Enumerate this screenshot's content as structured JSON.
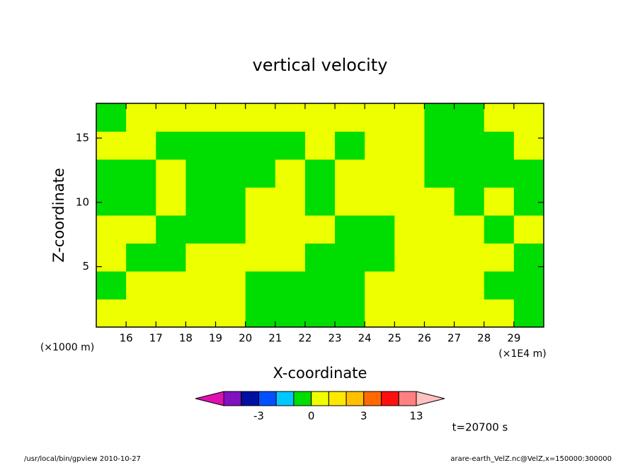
{
  "chart_data": {
    "type": "contour",
    "title": "vertical velocity",
    "xlabel": "X-coordinate",
    "ylabel": "Z-coordinate",
    "xunit": "(×1E4 m)",
    "yunit": "(×1000 m)",
    "xlim": [
      15,
      30
    ],
    "xticks": [
      16,
      17,
      18,
      19,
      20,
      21,
      22,
      23,
      24,
      25,
      26,
      27,
      28,
      29
    ],
    "ylim": [
      0.3,
      17.7
    ],
    "yticks": [
      5,
      10,
      15
    ],
    "x": [
      15.5,
      16.5,
      17.5,
      18.5,
      19.5,
      20.5,
      21.5,
      22.5,
      23.5,
      24.5,
      25.5,
      26.5,
      27.5,
      28.5,
      29.5
    ],
    "y": [
      1.39,
      3.56,
      5.74,
      7.91,
      10.09,
      12.26,
      14.44,
      16.61
    ],
    "z": [
      [
        0.5,
        0.5,
        0.5,
        0.5,
        0.5,
        -0.5,
        -0.5,
        -0.5,
        -0.5,
        0.5,
        0.5,
        0.5,
        0.5,
        0.5,
        -0.5
      ],
      [
        -0.5,
        0.5,
        0.5,
        0.5,
        0.5,
        -0.5,
        -0.5,
        -0.5,
        -0.5,
        0.5,
        0.5,
        0.5,
        0.5,
        -0.5,
        -0.5
      ],
      [
        0.5,
        -0.5,
        -0.5,
        0.5,
        0.5,
        0.5,
        0.5,
        -0.5,
        -0.5,
        -0.5,
        0.5,
        0.5,
        0.5,
        0.5,
        -0.5
      ],
      [
        0.5,
        0.5,
        -0.5,
        -0.5,
        -0.5,
        0.5,
        0.5,
        0.5,
        -0.5,
        -0.5,
        0.5,
        0.5,
        0.5,
        -0.5,
        0.5
      ],
      [
        -0.5,
        -0.5,
        0.5,
        -0.5,
        -0.5,
        0.5,
        0.5,
        -0.5,
        0.5,
        0.5,
        0.5,
        0.5,
        -0.5,
        0.5,
        -0.5
      ],
      [
        -0.5,
        -0.5,
        0.5,
        -0.5,
        -0.5,
        -0.5,
        0.5,
        -0.5,
        0.5,
        0.5,
        0.5,
        -0.5,
        -0.5,
        -0.5,
        -0.5
      ],
      [
        0.5,
        0.5,
        -0.5,
        -0.5,
        -0.5,
        -0.5,
        -0.5,
        0.5,
        -0.5,
        0.5,
        0.5,
        -0.5,
        -0.5,
        -0.5,
        0.5
      ],
      [
        -0.5,
        0.5,
        0.5,
        0.5,
        0.5,
        0.5,
        0.5,
        0.5,
        0.5,
        0.5,
        0.5,
        -0.5,
        -0.5,
        0.5,
        0.5
      ]
    ],
    "colorbar": {
      "levels": [
        -5,
        -4,
        -3,
        -2,
        -1,
        0,
        1,
        2,
        3,
        6,
        9,
        13
      ],
      "colors": [
        "#e010b0",
        "#8010c0",
        "#0010a0",
        "#0050ff",
        "#00c8ff",
        "#00dd00",
        "#eeff00",
        "#ffe800",
        "#ffc000",
        "#ff6a00",
        "#ff1010",
        "#ff8080",
        "#ffc0c0"
      ],
      "ticks": [
        -3,
        0,
        3,
        13
      ]
    },
    "annotation": "t=20700 s",
    "footer_left": "/usr/local/bin/gpview  2010-10-27",
    "footer_right": "arare-earth_VelZ.nc@VelZ,x=150000:300000"
  }
}
